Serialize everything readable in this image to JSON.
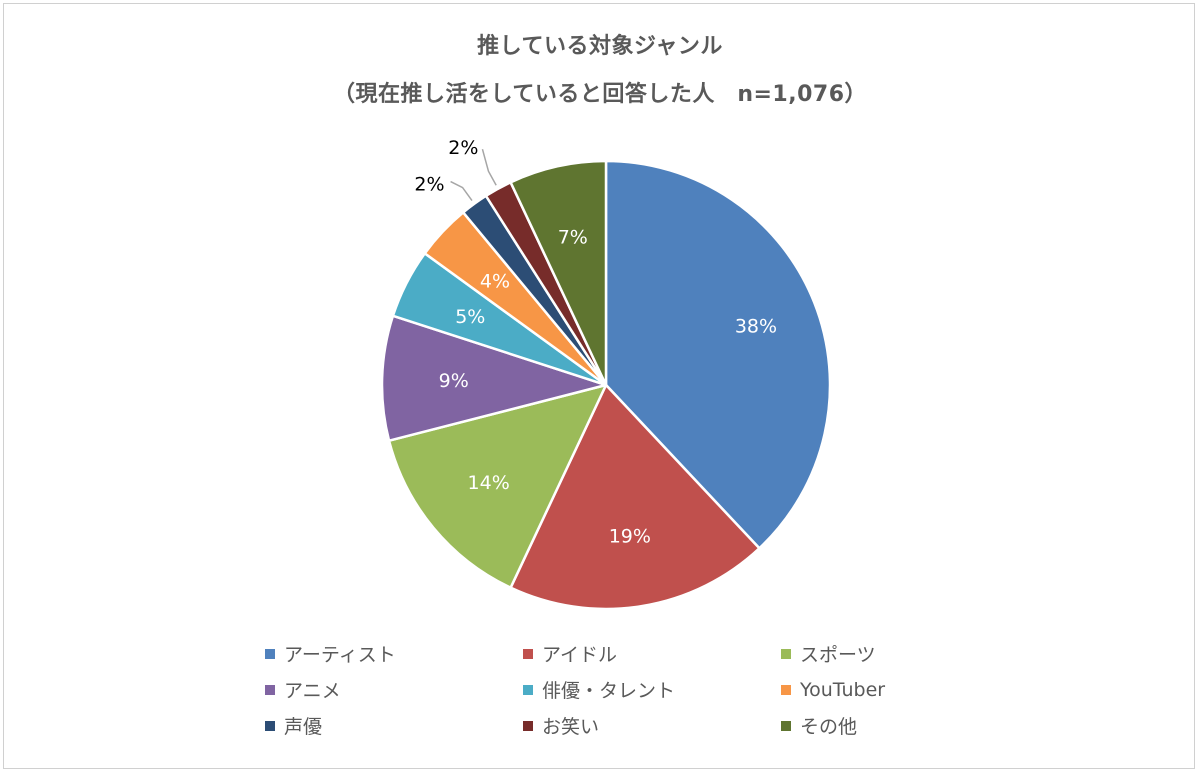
{
  "chart_data": {
    "type": "pie",
    "title": "推している対象ジャンル",
    "subtitle": "（現在推し活をしていると回答した人　n=1,076）",
    "labels": [
      "アーティスト",
      "アイドル",
      "スポーツ",
      "アニメ",
      "俳優・タレント",
      "YouTuber",
      "声優",
      "お笑い",
      "その他"
    ],
    "values": [
      38,
      19,
      14,
      9,
      5,
      4,
      2,
      2,
      7
    ],
    "data_labels": [
      "38%",
      "19%",
      "14%",
      "9%",
      "5%",
      "4%",
      "2%",
      "2%",
      "7%"
    ],
    "colors": [
      "#4f81bd",
      "#c0504d",
      "#9bbb59",
      "#8064a2",
      "#4bacc6",
      "#f79646",
      "#2c4d75",
      "#772c2a",
      "#5f7530"
    ],
    "legend_position": "bottom",
    "start_angle_deg": 0,
    "direction": "clockwise"
  }
}
